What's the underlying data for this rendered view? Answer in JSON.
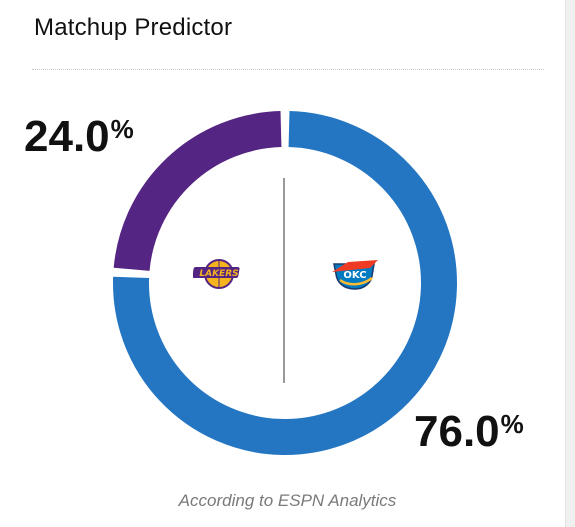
{
  "header": {
    "title": "Matchup Predictor"
  },
  "teams": {
    "away": {
      "name": "Lakers",
      "probability_label": "24.0",
      "probability": 24.0,
      "color": "#552583",
      "logo": "lakers-logo"
    },
    "home": {
      "name": "OKC",
      "probability_label": "76.0",
      "probability": 76.0,
      "color": "#2476c2",
      "logo": "thunder-logo"
    }
  },
  "percent_sign": "%",
  "footer": {
    "attribution": "According to ESPN Analytics"
  }
}
